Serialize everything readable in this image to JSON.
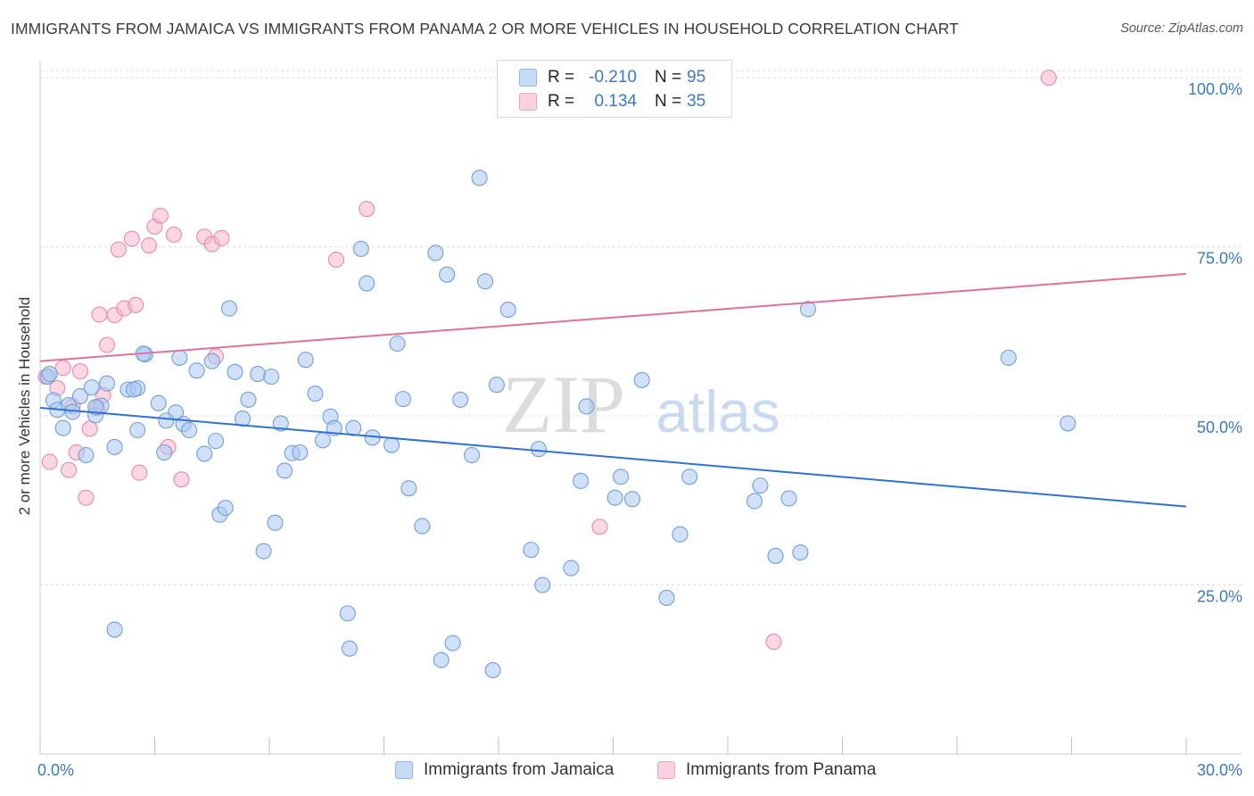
{
  "header": {
    "title": "IMMIGRANTS FROM JAMAICA VS IMMIGRANTS FROM PANAMA 2 OR MORE VEHICLES IN HOUSEHOLD CORRELATION CHART",
    "source": "Source: ZipAtlas.com"
  },
  "watermark": {
    "zip": "ZIP",
    "atlas": "atlas"
  },
  "legend": {
    "rows": [
      {
        "r_label": "R =",
        "r_value": "-0.210",
        "n_label": "N =",
        "n_value": "95",
        "color": "#a9c8f0"
      },
      {
        "r_label": "R =",
        "r_value": "0.134",
        "n_label": "N =",
        "n_value": "35",
        "color": "#f6b6cb"
      }
    ]
  },
  "bottom_legend": {
    "jamaica": "Immigrants from Jamaica",
    "panama": "Immigrants from Panama"
  },
  "chart_data": {
    "type": "scatter",
    "title": "IMMIGRANTS FROM JAMAICA VS IMMIGRANTS FROM PANAMA 2 OR MORE VEHICLES IN HOUSEHOLD CORRELATION CHART",
    "ylabel": "2 or more Vehicles in Household",
    "xlabel": "",
    "xlim": [
      0,
      30
    ],
    "ylim": [
      0,
      102
    ],
    "x_tick_labels": [
      "0.0%",
      "30.0%"
    ],
    "y_ticks": [
      25,
      50,
      75,
      100
    ],
    "y_tick_labels": [
      "25.0%",
      "50.0%",
      "75.0%",
      "100.0%"
    ],
    "grid": true,
    "legend_position": "top-center",
    "colors": {
      "jamaica_fill": "#a9c8f0",
      "jamaica_stroke": "#6f9fd8",
      "jamaica_line": "#2f72d1",
      "panama_fill": "#f6b6cb",
      "panama_stroke": "#e88aa9",
      "panama_line": "#e0719a",
      "axis_label_blue": "#3b78c6"
    },
    "series": [
      {
        "name": "Immigrants from Jamaica",
        "trend": {
          "x0": 0,
          "y0": 51.2,
          "x1": 30,
          "y1": 36.6
        },
        "points": [
          [
            0.2,
            55.8
          ],
          [
            0.35,
            52.3
          ],
          [
            0.45,
            50.9
          ],
          [
            0.6,
            48.2
          ],
          [
            0.75,
            51.6
          ],
          [
            0.85,
            50.6
          ],
          [
            1.05,
            52.9
          ],
          [
            1.2,
            44.2
          ],
          [
            1.35,
            54.2
          ],
          [
            1.45,
            50.1
          ],
          [
            1.6,
            51.5
          ],
          [
            1.75,
            54.8
          ],
          [
            1.95,
            45.4
          ],
          [
            2.3,
            53.9
          ],
          [
            2.55,
            47.9
          ],
          [
            2.75,
            59.1
          ],
          [
            3.1,
            51.9
          ],
          [
            3.25,
            44.6
          ],
          [
            3.55,
            50.5
          ],
          [
            3.75,
            48.8
          ],
          [
            3.9,
            47.9
          ],
          [
            4.1,
            56.7
          ],
          [
            4.3,
            44.4
          ],
          [
            4.5,
            58.1
          ],
          [
            4.6,
            46.3
          ],
          [
            4.7,
            35.4
          ],
          [
            4.85,
            36.4
          ],
          [
            4.95,
            65.9
          ],
          [
            5.1,
            56.5
          ],
          [
            5.3,
            49.6
          ],
          [
            5.45,
            52.4
          ],
          [
            5.7,
            56.2
          ],
          [
            5.85,
            30.0
          ],
          [
            6.05,
            55.8
          ],
          [
            6.15,
            34.2
          ],
          [
            6.3,
            48.9
          ],
          [
            6.4,
            41.9
          ],
          [
            6.6,
            44.5
          ],
          [
            6.8,
            44.6
          ],
          [
            6.95,
            58.3
          ],
          [
            7.2,
            53.3
          ],
          [
            7.4,
            46.4
          ],
          [
            7.6,
            49.9
          ],
          [
            7.7,
            48.2
          ],
          [
            8.05,
            20.8
          ],
          [
            8.2,
            48.2
          ],
          [
            8.1,
            15.6
          ],
          [
            8.4,
            74.7
          ],
          [
            8.55,
            69.6
          ],
          [
            8.7,
            46.8
          ],
          [
            9.2,
            45.7
          ],
          [
            9.35,
            60.7
          ],
          [
            9.5,
            52.5
          ],
          [
            9.65,
            39.3
          ],
          [
            10.0,
            33.7
          ],
          [
            10.35,
            74.1
          ],
          [
            10.5,
            13.9
          ],
          [
            10.65,
            70.9
          ],
          [
            10.8,
            16.4
          ],
          [
            11.0,
            52.4
          ],
          [
            11.3,
            44.2
          ],
          [
            11.5,
            85.2
          ],
          [
            11.65,
            69.9
          ],
          [
            11.85,
            12.4
          ],
          [
            11.95,
            54.6
          ],
          [
            12.25,
            65.7
          ],
          [
            12.85,
            30.2
          ],
          [
            13.05,
            45.1
          ],
          [
            13.15,
            25.0
          ],
          [
            13.9,
            27.5
          ],
          [
            14.15,
            40.4
          ],
          [
            14.3,
            51.4
          ],
          [
            15.05,
            37.9
          ],
          [
            15.2,
            41.0
          ],
          [
            15.5,
            37.7
          ],
          [
            15.75,
            55.3
          ],
          [
            16.4,
            23.1
          ],
          [
            16.75,
            32.5
          ],
          [
            17.0,
            41.0
          ],
          [
            18.7,
            37.4
          ],
          [
            18.85,
            39.7
          ],
          [
            19.25,
            29.3
          ],
          [
            19.6,
            37.8
          ],
          [
            19.9,
            29.8
          ],
          [
            20.1,
            65.8
          ],
          [
            25.35,
            58.6
          ],
          [
            26.9,
            48.9
          ],
          [
            2.55,
            54.1
          ],
          [
            1.45,
            51.3
          ],
          [
            3.65,
            58.6
          ],
          [
            2.45,
            53.9
          ],
          [
            0.25,
            56.2
          ],
          [
            1.95,
            18.4
          ],
          [
            2.7,
            59.2
          ],
          [
            3.3,
            49.3
          ]
        ]
      },
      {
        "name": "Immigrants from Panama",
        "trend": {
          "x0": 0,
          "y0": 58.1,
          "x1": 30,
          "y1": 71.0
        },
        "points": [
          [
            0.15,
            55.8
          ],
          [
            0.25,
            43.2
          ],
          [
            0.45,
            54.1
          ],
          [
            0.6,
            57.1
          ],
          [
            0.75,
            42.0
          ],
          [
            0.85,
            51.4
          ],
          [
            0.95,
            44.6
          ],
          [
            1.05,
            56.6
          ],
          [
            1.2,
            37.9
          ],
          [
            1.3,
            48.1
          ],
          [
            1.5,
            51.2
          ],
          [
            1.55,
            65.0
          ],
          [
            1.65,
            53.1
          ],
          [
            1.75,
            60.5
          ],
          [
            1.95,
            64.9
          ],
          [
            2.05,
            74.6
          ],
          [
            2.2,
            65.9
          ],
          [
            2.4,
            76.2
          ],
          [
            2.5,
            66.4
          ],
          [
            2.6,
            41.6
          ],
          [
            2.85,
            75.2
          ],
          [
            3.0,
            78.0
          ],
          [
            3.15,
            79.6
          ],
          [
            3.35,
            45.4
          ],
          [
            3.5,
            76.8
          ],
          [
            3.7,
            40.6
          ],
          [
            4.3,
            76.5
          ],
          [
            4.5,
            75.4
          ],
          [
            4.6,
            58.8
          ],
          [
            4.75,
            76.3
          ],
          [
            7.75,
            73.1
          ],
          [
            8.55,
            80.6
          ],
          [
            14.65,
            33.6
          ],
          [
            19.2,
            16.6
          ],
          [
            26.4,
            100.0
          ]
        ]
      }
    ]
  }
}
